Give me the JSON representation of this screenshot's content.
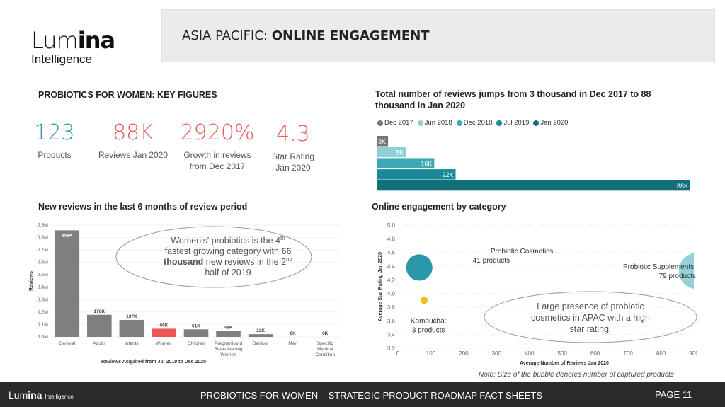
{
  "logo": {
    "word_light": "Lum",
    "word_bold": "ina",
    "sub": "Intelligence"
  },
  "header": {
    "region": "ASIA PACIFIC:",
    "title": "ONLINE ENGAGEMENT"
  },
  "key_figures": {
    "title": "PROBIOTICS FOR WOMEN: KEY FIGURES",
    "items": [
      {
        "value": "123",
        "label1": "Products",
        "label2": "",
        "color": "#2a98a8"
      },
      {
        "value": "88K",
        "label1": "Reviews Jan 2020",
        "label2": "",
        "color": "#e85c5c"
      },
      {
        "value": "2920%",
        "label1": "Growth in reviews",
        "label2": "from Dec 2017",
        "color": "#e85c5c"
      },
      {
        "value": "4.3",
        "label1": "Star Rating",
        "label2": "Jan 2020",
        "color": "#e85c5c"
      }
    ]
  },
  "sections": {
    "reviews_title": "Total number of reviews jumps from 3 thousand in Dec 2017  to 88",
    "reviews_title2": "thousand in Jan 2020",
    "new_reviews_title": "New reviews in the last 6 months of review period",
    "engagement_title": "Online engagement by category"
  },
  "callouts": {
    "womens_l1": "Women's' probiotics is the 4",
    "womens_sup1": "th",
    "womens_l2a": "fastest growing category  with ",
    "womens_l2b": "66",
    "womens_l3a": "thousand",
    "womens_l3b": " new reviews in the 2",
    "womens_sup2": "nd",
    "womens_l4": "half of 2019",
    "apac_l1": "Large presence of probiotic",
    "apac_l2": "cosmetics in APAC with a high",
    "apac_l3": "star rating."
  },
  "note": "Note: Size of the bubble denotes number of captured products",
  "footer": {
    "logo_word_light": "Lum",
    "logo_word_bold": "ina",
    "logo_sub": "Intelligence",
    "title": "PROBIOTICS  FOR WOMEN – STRATEGIC PRODUCT ROADMAP FACT SHEETS",
    "page": "PAGE 11"
  },
  "chart_data": [
    {
      "type": "bar",
      "orientation": "horizontal",
      "title": "Total number of reviews jumps from 3 thousand in Dec 2017  to 88 thousand in Jan 2020",
      "categories": [
        "Dec 2017",
        "Jun 2018",
        "Dec 2018",
        "Jul 2019",
        "Jan 2020"
      ],
      "values": [
        3,
        8,
        16,
        22,
        88
      ],
      "data_labels": [
        "3K",
        "8K",
        "16K",
        "22K",
        "88K"
      ],
      "colors": [
        "#777777",
        "#8fd0d8",
        "#3aa9b5",
        "#1a8a9a",
        "#136f79"
      ],
      "legend": "top",
      "xlim": [
        0,
        88
      ]
    },
    {
      "type": "bar",
      "title": "New reviews in the last 6 months of review period",
      "categories": [
        "General",
        "Adults",
        "Infants",
        "Women",
        "Children",
        "Pregnant and Breastfeeding Women",
        "Seniors",
        "Men",
        "Specific Medical Condition"
      ],
      "category_lines": [
        [
          "General"
        ],
        [
          "Adults"
        ],
        [
          "Infants"
        ],
        [
          "Women"
        ],
        [
          "Children"
        ],
        [
          "Pregnant and",
          "Breastfeeding",
          "Women"
        ],
        [
          "Seniors"
        ],
        [
          "Men"
        ],
        [
          "Specific",
          "Medical",
          "Condition"
        ]
      ],
      "values": [
        858,
        178,
        137,
        66,
        61,
        49,
        22,
        0,
        0
      ],
      "data_labels": [
        "858K",
        "178K",
        "137K",
        "66K",
        "61K",
        "49K",
        "22K",
        "0K",
        "0K"
      ],
      "highlight": "Women",
      "colors": {
        "default": "#7f7f7f",
        "highlight": "#ef5757"
      },
      "xlabel": "Reviews Acquired from Jul 2019 to Dec 2020",
      "ylabel": "Reviews",
      "yticks": [
        "0.0M",
        "0.1M",
        "0.2M",
        "0.3M",
        "0.4M",
        "0.5M",
        "0.6M",
        "0.7M",
        "0.8M",
        "0.9M"
      ],
      "ylim": [
        0,
        900
      ]
    },
    {
      "type": "scatter",
      "title": "Online engagement by category",
      "xlabel": "Average Number of Reviews Jan 2020",
      "ylabel": "Average Star Rating Jan 2020",
      "xlim": [
        0,
        900
      ],
      "ylim": [
        3.2,
        5.0
      ],
      "xticks": [
        0,
        100,
        200,
        300,
        400,
        500,
        600,
        700,
        800,
        900
      ],
      "yticks": [
        "3.2",
        "3.4",
        "3.6",
        "3.8",
        "4.0",
        "4.2",
        "4.4",
        "4.6",
        "4.8",
        "5.0"
      ],
      "points": [
        {
          "label1": "Probiotic Cosmetics:",
          "label2": "41 products",
          "x": 65,
          "y": 4.38,
          "products": 41,
          "color": "#2a98a8",
          "label_side": "right"
        },
        {
          "label1": "Kombucha:",
          "label2": "3 products",
          "x": 80,
          "y": 3.9,
          "products": 3,
          "color": "#f2c01e",
          "label_side": "below"
        },
        {
          "label1": "Probiotic Supplements:",
          "label2": "79 products",
          "x": 910,
          "y": 4.33,
          "products": 79,
          "color": "#93d3d7",
          "label_side": "left"
        }
      ]
    }
  ]
}
